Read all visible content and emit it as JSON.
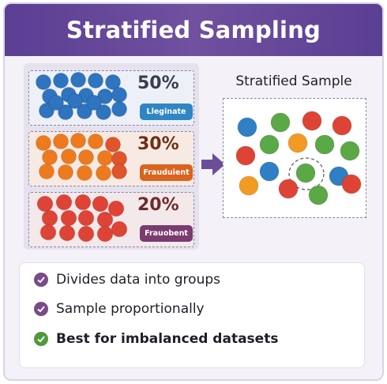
{
  "header": {
    "title": "Stratified Sampling"
  },
  "strata": [
    {
      "percent": "50%",
      "label": "Lleginate",
      "color": "#2f74bf"
    },
    {
      "percent": "30%",
      "label": "Frauduient",
      "color": "#ee7a1e"
    },
    {
      "percent": "20%",
      "label": "Frauobent",
      "color": "#dd4436"
    }
  ],
  "sample": {
    "title": "Stratified Sample",
    "colors": [
      "#2f7fc4",
      "#5aa846",
      "#dd4436",
      "#f29b22"
    ]
  },
  "bullets": [
    {
      "text": "Divides data into groups",
      "icon": "check-icon",
      "color": "#7a4a8a"
    },
    {
      "text": "Sample proportionally",
      "icon": "check-icon",
      "color": "#7a4a8a"
    },
    {
      "text": "Best for imbalanced datasets",
      "icon": "check-icon",
      "color": "#4f9a3a"
    }
  ]
}
